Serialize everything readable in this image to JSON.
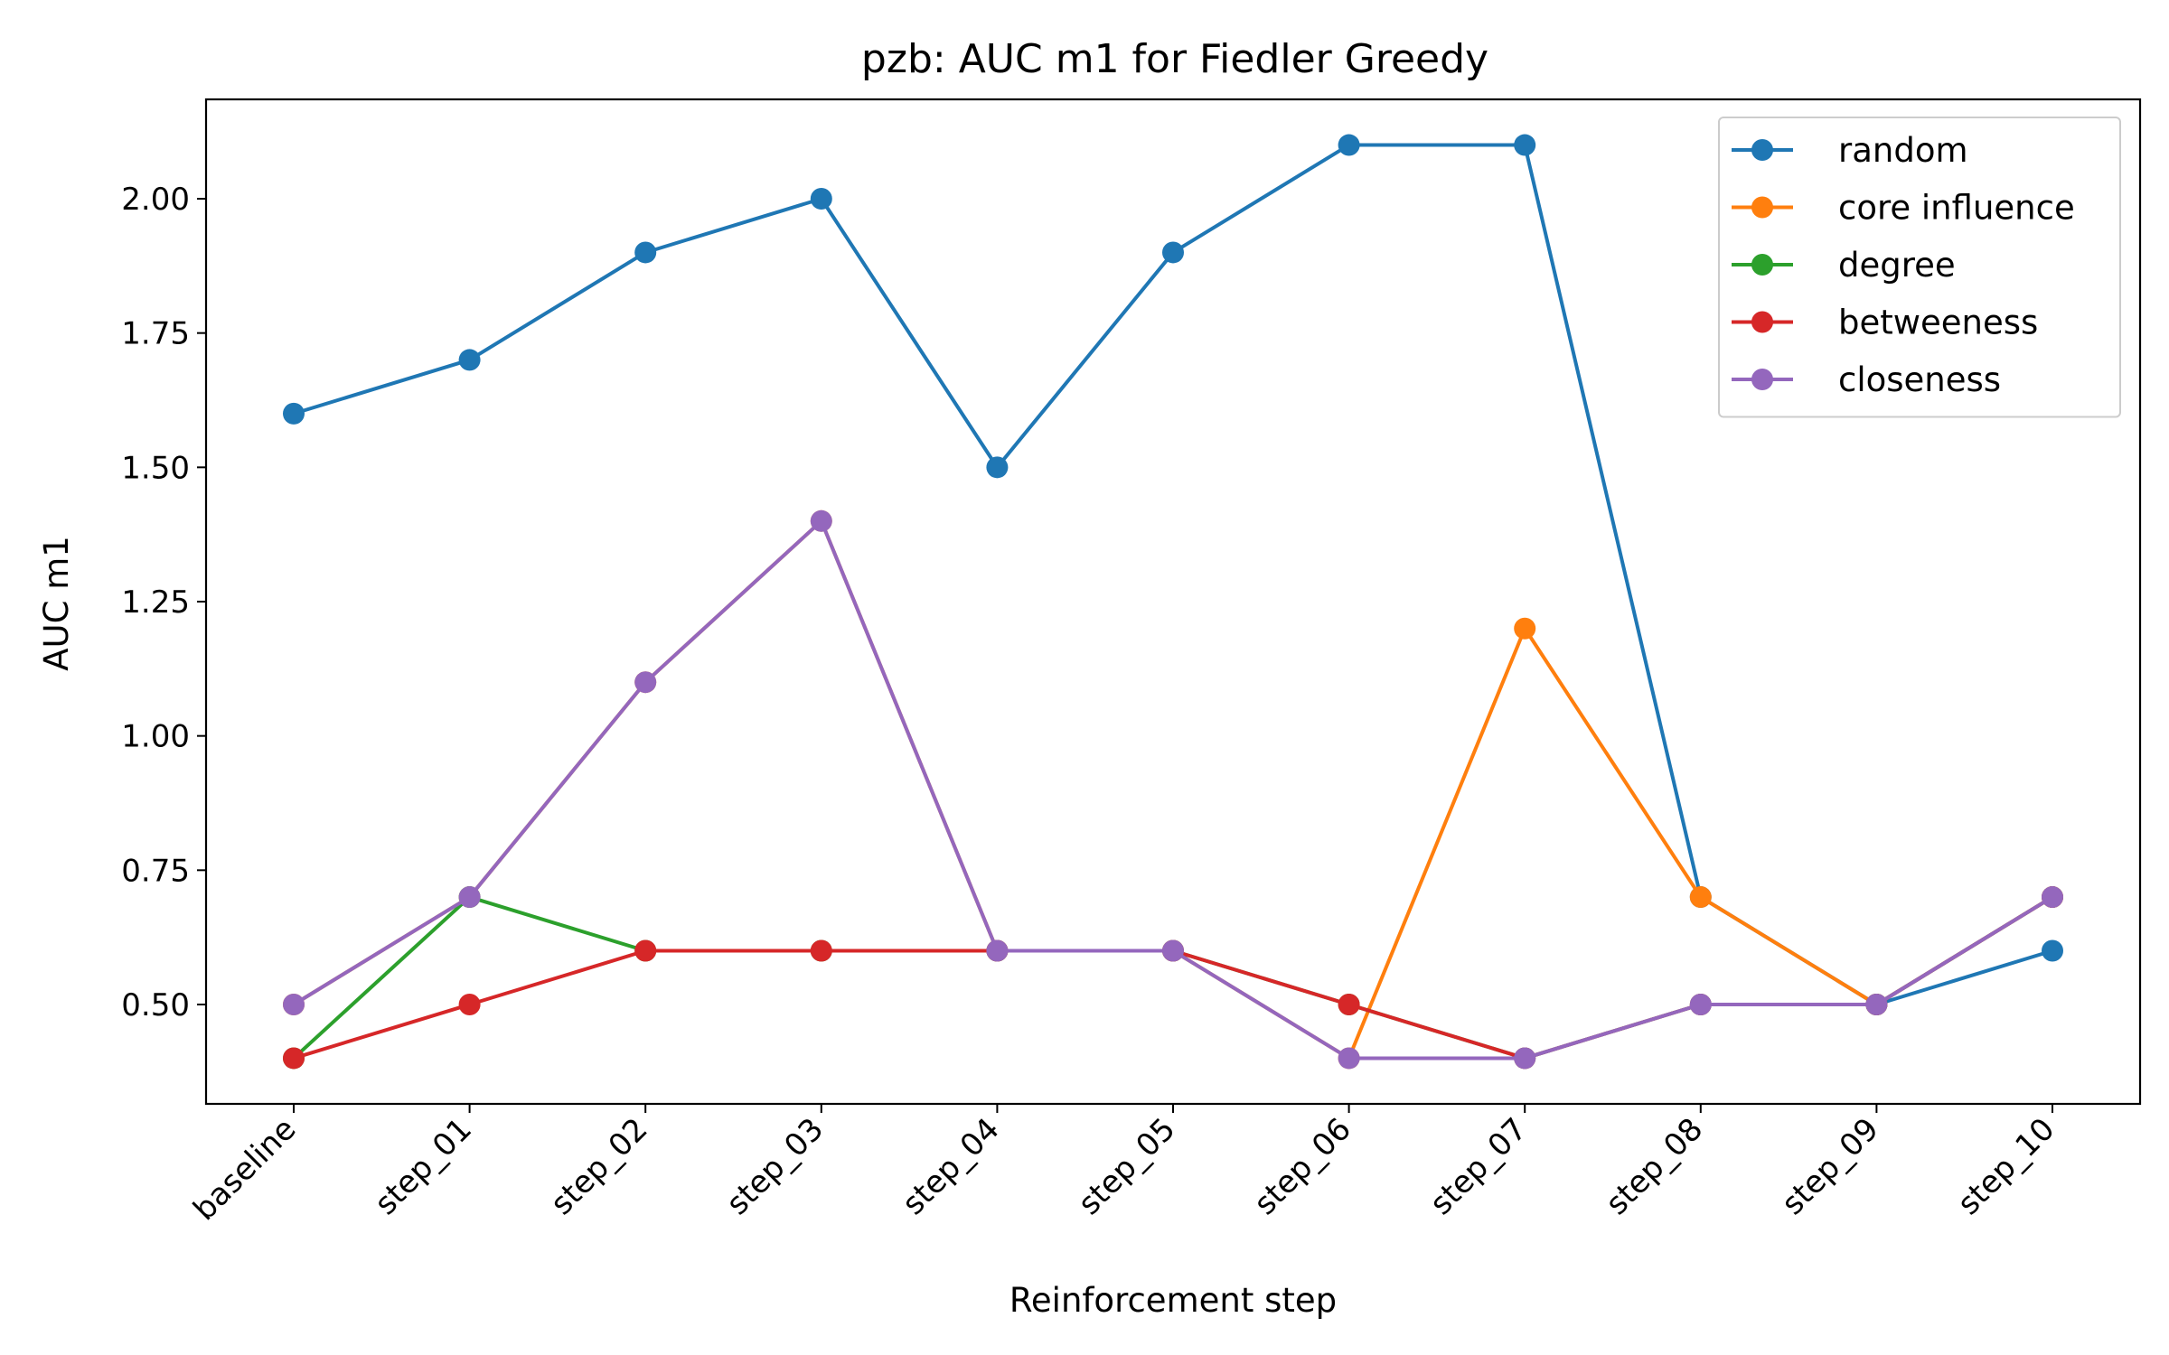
{
  "chart_data": {
    "type": "line",
    "title": "pzb: AUC m1 for Fiedler Greedy",
    "xlabel": "Reinforcement step",
    "ylabel": "AUC m1",
    "categories": [
      "baseline",
      "step_01",
      "step_02",
      "step_03",
      "step_04",
      "step_05",
      "step_06",
      "step_07",
      "step_08",
      "step_09",
      "step_10"
    ],
    "ylim": [
      0.315,
      2.185
    ],
    "yticks": [
      0.5,
      0.75,
      1.0,
      1.25,
      1.5,
      1.75,
      2.0
    ],
    "ytick_labels": [
      "0.50",
      "0.75",
      "1.00",
      "1.25",
      "1.50",
      "1.75",
      "2.00"
    ],
    "grid": false,
    "legend_position": "upper right",
    "series": [
      {
        "name": "random",
        "color": "#1f77b4",
        "values": [
          1.6,
          1.7,
          1.9,
          2.0,
          1.5,
          1.9,
          2.1,
          2.1,
          0.7,
          0.5,
          0.6
        ]
      },
      {
        "name": "core influence",
        "color": "#ff7f0e",
        "values": [
          0.5,
          0.7,
          1.1,
          1.4,
          0.6,
          0.6,
          0.4,
          1.2,
          0.7,
          0.5,
          0.7
        ]
      },
      {
        "name": "degree",
        "color": "#2ca02c",
        "values": [
          0.4,
          0.7,
          0.6,
          0.6,
          0.6,
          0.6,
          0.5,
          0.4,
          0.5,
          0.5,
          0.7
        ]
      },
      {
        "name": "betweeness",
        "color": "#d62728",
        "values": [
          0.4,
          0.5,
          0.6,
          0.6,
          0.6,
          0.6,
          0.5,
          0.4,
          0.5,
          0.5,
          0.7
        ]
      },
      {
        "name": "closeness",
        "color": "#9467bd",
        "values": [
          0.5,
          0.7,
          1.1,
          1.4,
          0.6,
          0.6,
          0.4,
          0.4,
          0.5,
          0.5,
          0.7
        ]
      }
    ]
  }
}
